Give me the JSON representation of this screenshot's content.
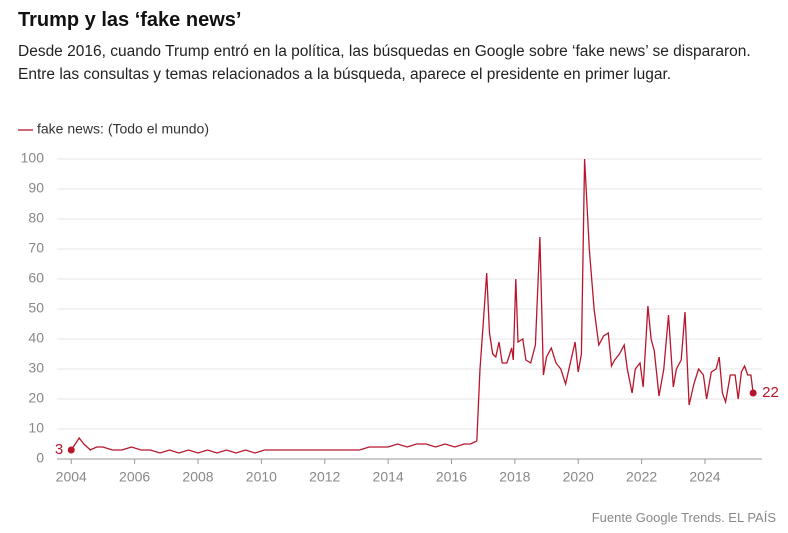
{
  "chart_data": {
    "type": "line",
    "title": "Trump y las ‘fake news’",
    "subtitle": "Desde 2016, cuando Trump entró en la política, las búsquedas en Google sobre ‘fake news’ se dispararon. Entre las consultas y temas relacionados a la búsqueda, aparece el presidente en primer lugar.",
    "source": "Fuente Google Trends. EL PAÍS",
    "x": [
      2004.0,
      2004.25,
      2004.4,
      2004.6,
      2004.8,
      2005.0,
      2005.3,
      2005.6,
      2005.9,
      2006.2,
      2006.5,
      2006.8,
      2007.1,
      2007.4,
      2007.7,
      2008.0,
      2008.3,
      2008.6,
      2008.9,
      2009.2,
      2009.5,
      2009.8,
      2010.1,
      2010.4,
      2010.7,
      2011.0,
      2011.3,
      2011.6,
      2011.9,
      2012.2,
      2012.5,
      2012.8,
      2013.1,
      2013.4,
      2013.7,
      2014.0,
      2014.3,
      2014.6,
      2014.9,
      2015.2,
      2015.5,
      2015.8,
      2016.1,
      2016.4,
      2016.6,
      2016.8,
      2016.9,
      2017.0,
      2017.11,
      2017.2,
      2017.3,
      2017.4,
      2017.5,
      2017.6,
      2017.75,
      2017.9,
      2017.95,
      2018.03,
      2018.1,
      2018.25,
      2018.35,
      2018.5,
      2018.65,
      2018.79,
      2018.9,
      2019.0,
      2019.15,
      2019.3,
      2019.45,
      2019.6,
      2019.75,
      2019.9,
      2020.0,
      2020.1,
      2020.2,
      2020.35,
      2020.5,
      2020.65,
      2020.8,
      2020.95,
      2021.05,
      2021.15,
      2021.3,
      2021.45,
      2021.55,
      2021.7,
      2021.8,
      2021.95,
      2022.05,
      2022.2,
      2022.3,
      2022.4,
      2022.55,
      2022.7,
      2022.85,
      2023.0,
      2023.1,
      2023.25,
      2023.37,
      2023.5,
      2023.65,
      2023.8,
      2023.95,
      2024.05,
      2024.2,
      2024.35,
      2024.45,
      2024.55,
      2024.65,
      2024.8,
      2024.95,
      2025.05,
      2025.15,
      2025.25,
      2025.35,
      2025.45,
      2025.52
    ],
    "series": [
      {
        "name": "fake news: (Todo el mundo)",
        "color": "#b8162c",
        "values": [
          3,
          7,
          5,
          3,
          4,
          4,
          3,
          3,
          4,
          3,
          3,
          2,
          3,
          2,
          3,
          2,
          3,
          2,
          3,
          2,
          3,
          2,
          3,
          3,
          3,
          3,
          3,
          3,
          3,
          3,
          3,
          3,
          3,
          4,
          4,
          4,
          5,
          4,
          5,
          5,
          4,
          5,
          4,
          5,
          5,
          6,
          30,
          45,
          62,
          42,
          35,
          34,
          39,
          32,
          32,
          37,
          33,
          60,
          39,
          40,
          33,
          32,
          38,
          74,
          28,
          34,
          37,
          32,
          30,
          25,
          32,
          39,
          29,
          35,
          100,
          70,
          50,
          38,
          41,
          42,
          31,
          33,
          35,
          38,
          30,
          22,
          30,
          32,
          24,
          51,
          40,
          36,
          21,
          30,
          48,
          24,
          30,
          33,
          49,
          18,
          25,
          30,
          28,
          20,
          29,
          30,
          34,
          22,
          19,
          28,
          28,
          20,
          29,
          31,
          28,
          28,
          22
        ]
      }
    ],
    "xlim": [
      2003.55,
      2025.8
    ],
    "xticks": [
      2004,
      2006,
      2008,
      2010,
      2012,
      2014,
      2016,
      2018,
      2020,
      2022,
      2024
    ],
    "ylim": [
      0,
      100
    ],
    "yticks": [
      0,
      10,
      20,
      30,
      40,
      50,
      60,
      70,
      80,
      90,
      100
    ],
    "grid": true
  }
}
